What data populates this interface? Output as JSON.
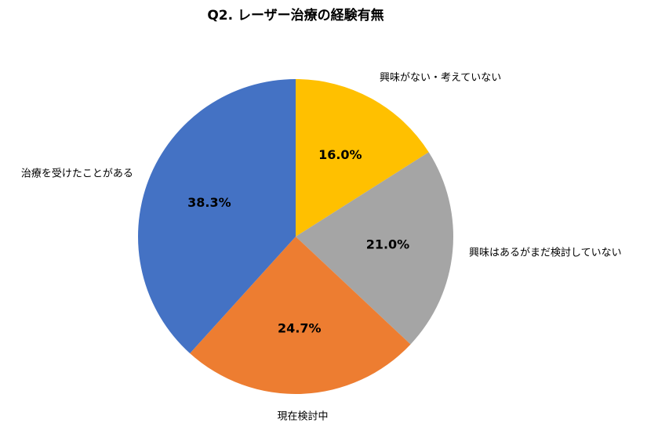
{
  "chart_data": {
    "type": "pie",
    "title": "Q2. レーザー治療の経験有無",
    "categories": [
      "興味がない・考えていない",
      "興味はあるがまだ検討していない",
      "現在検討中",
      "治療を受けたことがある"
    ],
    "values": [
      16.0,
      21.0,
      24.7,
      38.3
    ],
    "value_labels": [
      "16.0%",
      "21.0%",
      "24.7%",
      "38.3%"
    ],
    "colors": [
      "#ffc000",
      "#a5a5a5",
      "#ed7d31",
      "#4472c4"
    ]
  }
}
